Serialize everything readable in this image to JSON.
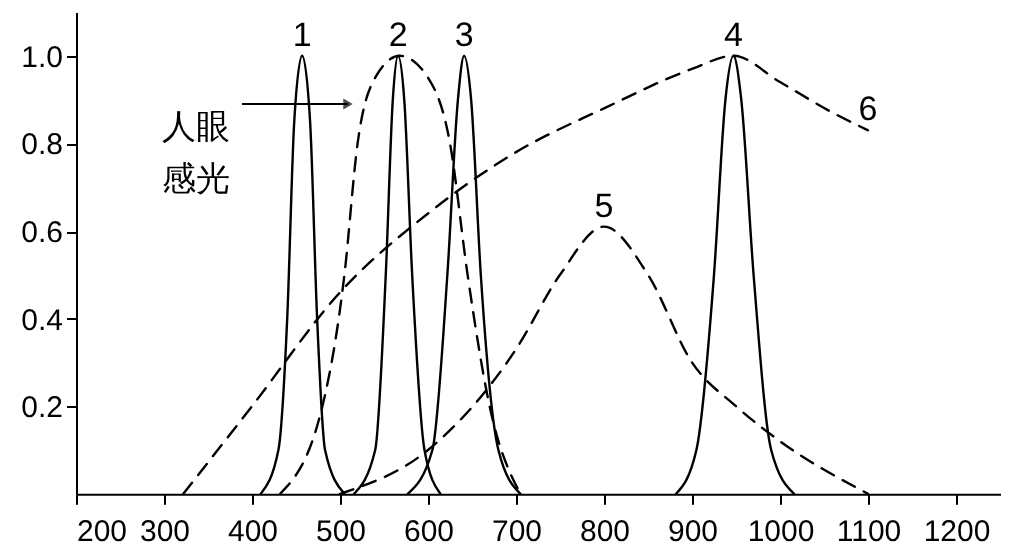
{
  "chart_data": {
    "type": "line",
    "xlim": [
      200,
      1250
    ],
    "ylim": [
      0,
      1.1
    ],
    "xticks": [
      200,
      300,
      400,
      500,
      600,
      700,
      800,
      900,
      1000,
      1100,
      1200
    ],
    "yticks": [
      0.2,
      0.4,
      0.6,
      0.8,
      {
        "value": 1.0,
        "label": "1.0"
      }
    ],
    "grid": false,
    "marker": "none",
    "series": [
      {
        "color": "#000000",
        "line_style": "solid",
        "x": [
          410,
          430,
          440,
          448,
          457,
          466,
          474,
          483,
          505
        ],
        "values": [
          0,
          0.1,
          0.4,
          0.85,
          1.0,
          0.85,
          0.4,
          0.1,
          0
        ]
      },
      {
        "color": "#000000",
        "line_style": "solid",
        "x": [
          516,
          540,
          552,
          560,
          566,
          573,
          582,
          596,
          614
        ],
        "values": [
          0,
          0.1,
          0.5,
          0.9,
          1.0,
          0.9,
          0.5,
          0.1,
          0
        ]
      },
      {
        "color": "#000000",
        "line_style": "solid",
        "x": [
          577,
          605,
          622,
          634,
          641,
          649,
          660,
          680,
          705
        ],
        "values": [
          0,
          0.1,
          0.5,
          0.9,
          1.0,
          0.9,
          0.5,
          0.1,
          0
        ]
      },
      {
        "color": "#000000",
        "line_style": "solid",
        "x": [
          882,
          905,
          925,
          938,
          947,
          956,
          970,
          990,
          1016
        ],
        "values": [
          0,
          0.1,
          0.5,
          0.9,
          1.0,
          0.9,
          0.5,
          0.1,
          0
        ]
      },
      {
        "color": "#000000",
        "line_style": "dashed",
        "x": [
          500,
          600,
          700,
          750,
          800,
          850,
          900,
          950,
          1000,
          1100
        ],
        "values": [
          0,
          0.1,
          0.33,
          0.5,
          0.61,
          0.5,
          0.3,
          0.2,
          0.12,
          0
        ]
      },
      {
        "color": "#000000",
        "line_style": "dashed",
        "x": [
          322,
          400,
          500,
          600,
          700,
          800,
          900,
          947,
          1000,
          1060,
          1100
        ],
        "values": [
          0,
          0.2,
          0.46,
          0.64,
          0.78,
          0.88,
          0.97,
          1.0,
          0.94,
          0.87,
          0.83
        ]
      },
      {
        "color": "#000000",
        "line_style": "dashed",
        "x": [
          432,
          480,
          505,
          520,
          540,
          568,
          600,
          625,
          645,
          670,
          705
        ],
        "values": [
          0,
          0.2,
          0.5,
          0.8,
          0.95,
          1.0,
          0.95,
          0.8,
          0.5,
          0.2,
          0
        ]
      }
    ],
    "annotations": [
      {
        "text": "1",
        "x": 457,
        "y": 1.0
      },
      {
        "text": "2",
        "x": 566,
        "y": 1.0
      },
      {
        "text": "3",
        "x": 641,
        "y": 1.0
      },
      {
        "text": "4",
        "x": 947,
        "y": 1.0
      },
      {
        "text": "5",
        "x": 800,
        "y": 0.61
      },
      {
        "text": "6",
        "x": 1100,
        "y": 0.83
      },
      "人眼感光"
    ]
  }
}
